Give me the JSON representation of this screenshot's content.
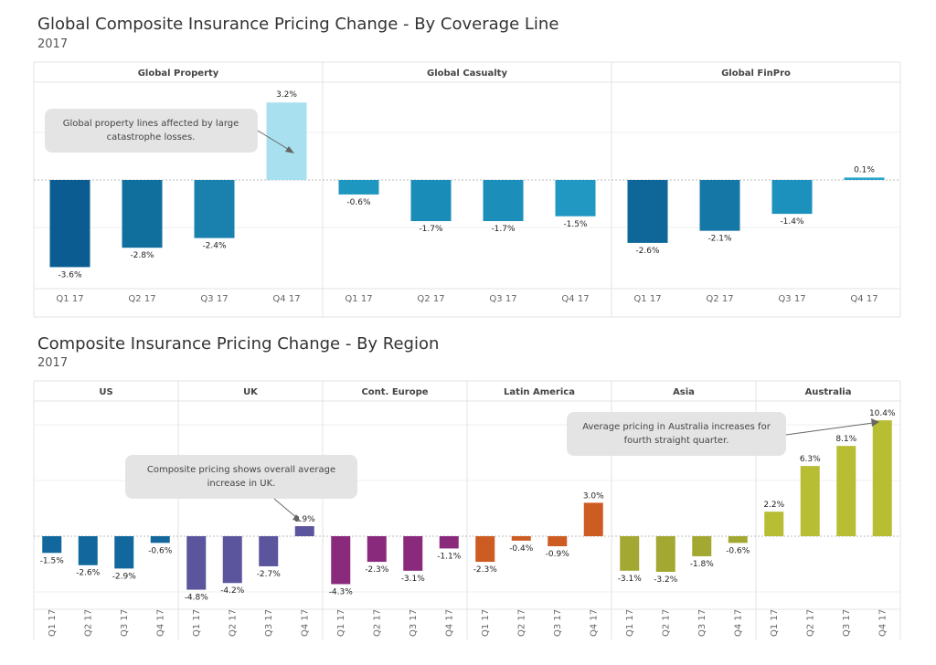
{
  "chart_data": [
    {
      "type": "bar",
      "title": "Global Composite Insurance Pricing Change - By Coverage Line",
      "subtitle": "2017",
      "categories": [
        "Q1 17",
        "Q2 17",
        "Q3 17",
        "Q4 17"
      ],
      "panels": [
        {
          "name": "Global Property",
          "values": [
            -3.6,
            -2.8,
            -2.4,
            3.2
          ],
          "colors": [
            "#0b5d91",
            "#116f9e",
            "#1a80ad",
            "#a9e0f0"
          ],
          "labels": [
            "-3.6%",
            "-2.8%",
            "-2.4%",
            "3.2%"
          ]
        },
        {
          "name": "Global Casualty",
          "values": [
            -0.6,
            -1.7,
            -1.7,
            -1.5
          ],
          "colors": [
            "#1d96c0",
            "#1a8cb8",
            "#1b8fba",
            "#2198c2"
          ],
          "labels": [
            "-0.6%",
            "-1.7%",
            "-1.7%",
            "-1.5%"
          ]
        },
        {
          "name": "Global FinPro",
          "values": [
            -2.6,
            -2.1,
            -1.4,
            0.1
          ],
          "colors": [
            "#0e6699",
            "#1477a6",
            "#1d91bd",
            "#2aa4cc"
          ],
          "labels": [
            "-2.6%",
            "-2.1%",
            "-1.4%",
            "0.1%"
          ]
        }
      ],
      "annotation": {
        "text": [
          "Global property lines affected by large",
          "catastrophe losses."
        ]
      }
    },
    {
      "type": "bar",
      "title": "Composite Insurance Pricing Change - By Region",
      "subtitle": "2017",
      "categories": [
        "Q1 17",
        "Q2 17",
        "Q3 17",
        "Q4 17"
      ],
      "panels": [
        {
          "name": "US",
          "values": [
            -1.5,
            -2.6,
            -2.9,
            -0.6
          ],
          "color": "#12689c",
          "labels": [
            "-1.5%",
            "-2.6%",
            "-2.9%",
            "-0.6%"
          ]
        },
        {
          "name": "UK",
          "values": [
            -4.8,
            -4.2,
            -2.7,
            0.9
          ],
          "color": "#5a559c",
          "labels": [
            "-4.8%",
            "-4.2%",
            "-2.7%",
            "0.9%"
          ]
        },
        {
          "name": "Cont. Europe",
          "values": [
            -4.3,
            -2.3,
            -3.1,
            -1.1
          ],
          "color": "#8a2a7c",
          "labels": [
            "-4.3%",
            "-2.3%",
            "-3.1%",
            "-1.1%"
          ]
        },
        {
          "name": "Latin America",
          "values": [
            -2.3,
            -0.4,
            -0.9,
            3.0
          ],
          "color": "#cc5c22",
          "labels": [
            "-2.3%",
            "-0.4%",
            "-0.9%",
            "3.0%"
          ]
        },
        {
          "name": "Asia",
          "values": [
            -3.1,
            -3.2,
            -1.8,
            -0.6
          ],
          "color": "#a3a832",
          "labels": [
            "-3.1%",
            "-3.2%",
            "-1.8%",
            "-0.6%"
          ]
        },
        {
          "name": "Australia",
          "values": [
            2.2,
            6.3,
            8.1,
            10.4
          ],
          "color": "#b7be34",
          "labels": [
            "2.2%",
            "6.3%",
            "8.1%",
            "10.4%"
          ]
        }
      ],
      "annotations": [
        {
          "text": [
            "Composite pricing shows overall average",
            "increase in UK."
          ]
        },
        {
          "text": [
            "Average pricing in Australia increases for",
            "fourth straight quarter."
          ]
        }
      ]
    }
  ]
}
